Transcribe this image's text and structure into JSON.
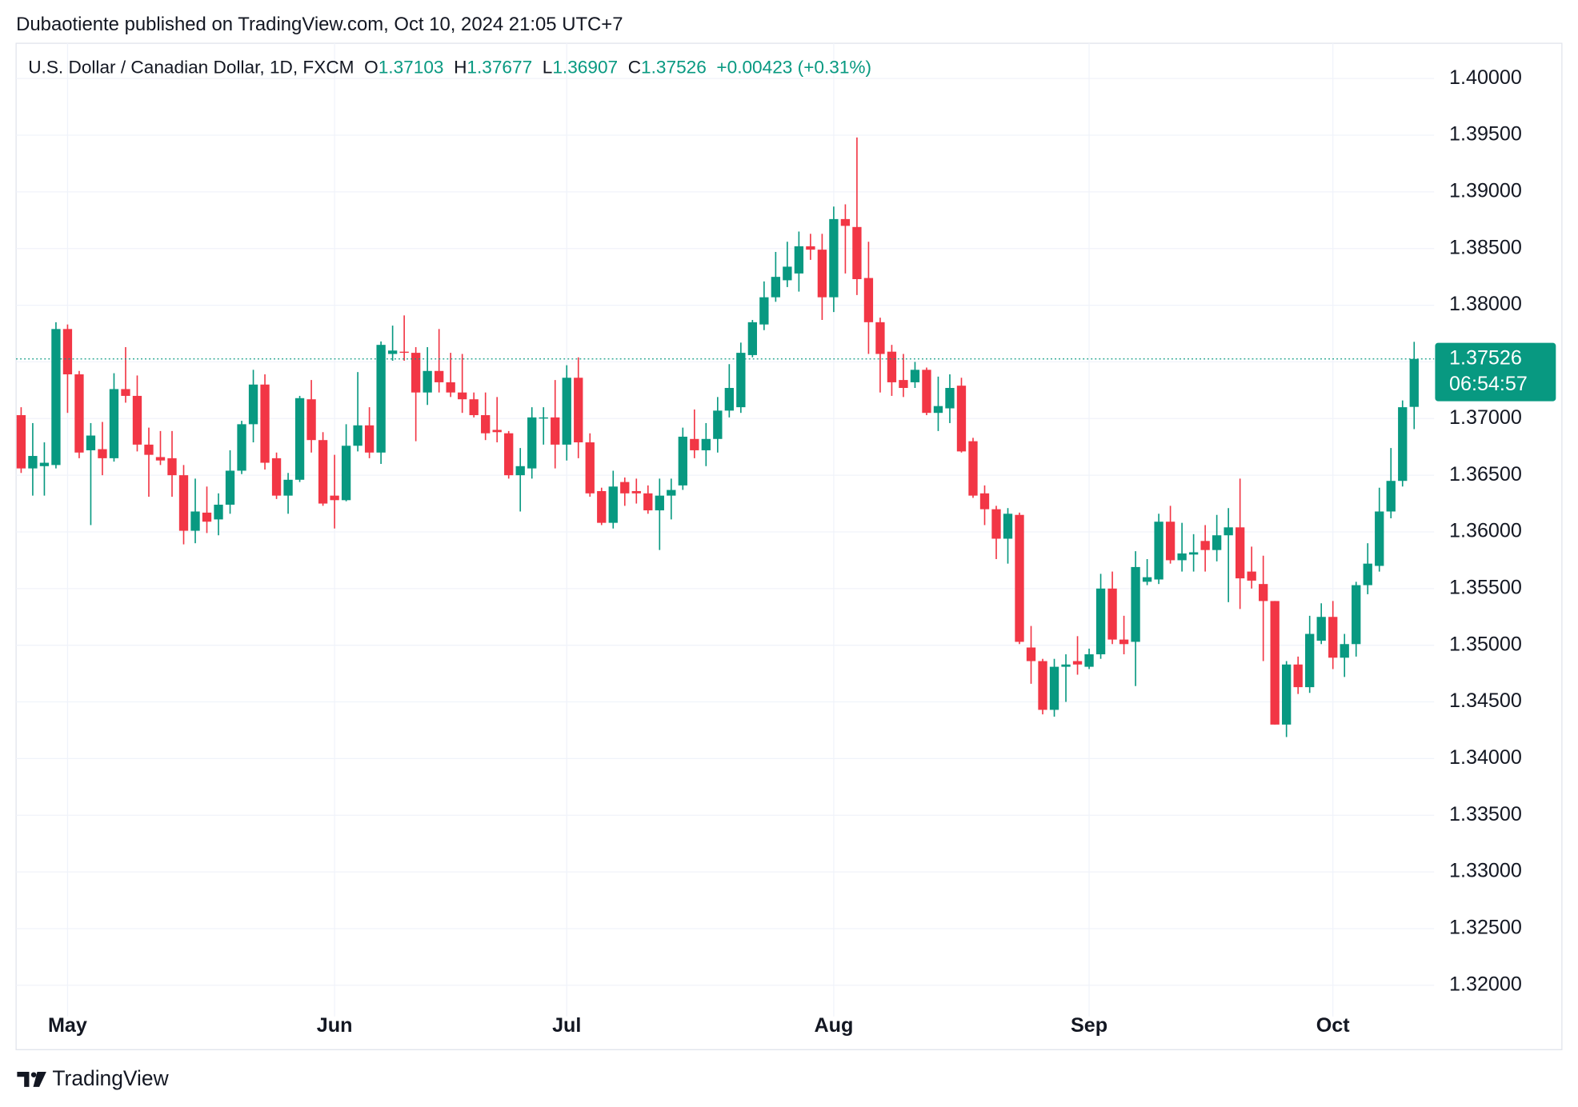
{
  "published": "Dubaotiente published on TradingView.com, Oct 10, 2024 21:05 UTC+7",
  "brand": "TradingView",
  "chart_data": {
    "type": "candlestick",
    "title": "U.S. Dollar / Canadian Dollar, 1D, FXCM",
    "ohlc_labels": [
      "O",
      "H",
      "L",
      "C"
    ],
    "change": "+0.00423 (+0.31%)",
    "countdown": "06:54:57",
    "up_color": "#089981",
    "down_color": "#f23645",
    "grid": true,
    "ylim": [
      1.31725,
      1.40311
    ],
    "yticks": [
      {
        "value": 1.32,
        "label": "1.32000"
      },
      {
        "value": 1.325,
        "label": "1.32500"
      },
      {
        "value": 1.33,
        "label": "1.33000"
      },
      {
        "value": 1.335,
        "label": "1.33500"
      },
      {
        "value": 1.34,
        "label": "1.34000"
      },
      {
        "value": 1.345,
        "label": "1.34500"
      },
      {
        "value": 1.35,
        "label": "1.35000"
      },
      {
        "value": 1.355,
        "label": "1.35500"
      },
      {
        "value": 1.36,
        "label": "1.36000"
      },
      {
        "value": 1.365,
        "label": "1.36500"
      },
      {
        "value": 1.37,
        "label": "1.37000"
      },
      {
        "value": 1.375,
        "label": "1.37500"
      },
      {
        "value": 1.38,
        "label": "1.38000"
      },
      {
        "value": 1.385,
        "label": "1.38500"
      },
      {
        "value": 1.39,
        "label": "1.39000"
      },
      {
        "value": 1.395,
        "label": "1.39500"
      },
      {
        "value": 1.4,
        "label": "1.40000"
      }
    ],
    "categories": [
      null,
      null,
      null,
      null,
      "May",
      null,
      null,
      null,
      null,
      null,
      null,
      null,
      null,
      null,
      null,
      null,
      null,
      null,
      null,
      null,
      null,
      null,
      null,
      null,
      null,
      null,
      null,
      "Jun",
      null,
      null,
      null,
      null,
      null,
      null,
      null,
      null,
      null,
      null,
      null,
      null,
      null,
      null,
      null,
      null,
      null,
      null,
      null,
      "Jul",
      null,
      null,
      null,
      null,
      null,
      null,
      null,
      null,
      null,
      null,
      null,
      null,
      null,
      null,
      null,
      null,
      null,
      null,
      null,
      null,
      null,
      null,
      "Aug",
      null,
      null,
      null,
      null,
      null,
      null,
      null,
      null,
      null,
      null,
      null,
      null,
      null,
      null,
      null,
      null,
      null,
      null,
      null,
      null,
      null,
      "Sep",
      null,
      null,
      null,
      null,
      null,
      null,
      null,
      null,
      null,
      null,
      null,
      null,
      null,
      null,
      null,
      null,
      null,
      null,
      null,
      null,
      "Oct",
      null,
      null,
      null,
      null,
      null,
      null,
      null
    ],
    "open": [
      1.3703,
      1.3656,
      1.3658,
      1.3659,
      1.3779,
      1.3739,
      1.3672,
      1.3673,
      1.3665,
      1.3726,
      1.372,
      1.3677,
      1.3666,
      1.3665,
      1.365,
      1.3601,
      1.3617,
      1.3611,
      1.3624,
      1.3654,
      1.3695,
      1.373,
      1.3665,
      1.3632,
      1.3646,
      1.3717,
      1.3681,
      1.3632,
      1.3628,
      1.3676,
      1.3694,
      1.367,
      1.3757,
      1.3759,
      1.3758,
      1.3723,
      1.3742,
      1.3732,
      1.3723,
      1.3717,
      1.3703,
      1.369,
      1.3687,
      1.365,
      1.3656,
      1.37,
      1.3701,
      1.3677,
      1.3736,
      1.3679,
      1.3636,
      1.3608,
      1.3644,
      1.3636,
      1.3634,
      1.3619,
      1.3632,
      1.3641,
      1.3682,
      1.3672,
      1.3682,
      1.3707,
      1.371,
      1.3756,
      1.3783,
      1.3807,
      1.3822,
      1.3828,
      1.3852,
      1.3849,
      1.3807,
      1.3876,
      1.3869,
      1.3824,
      1.3785,
      1.3759,
      1.3734,
      1.3732,
      1.3743,
      1.3705,
      1.3709,
      1.3729,
      1.368,
      1.3634,
      1.362,
      1.3594,
      1.3615,
      1.3498,
      1.3486,
      1.3443,
      1.3481,
      1.3486,
      1.3481,
      1.3492,
      1.355,
      1.3505,
      1.3503,
      1.3556,
      1.3558,
      1.3609,
      1.3575,
      1.358,
      1.3592,
      1.3584,
      1.3597,
      1.3604,
      1.3565,
      1.3554,
      1.3539,
      1.343,
      1.3483,
      1.3463,
      1.3504,
      1.3525,
      1.3489,
      1.3501,
      1.3553,
      1.357,
      1.3618,
      1.3645,
      1.37103
    ],
    "high": [
      1.371,
      1.3696,
      1.3679,
      1.3785,
      1.3783,
      1.3742,
      1.3696,
      1.3697,
      1.374,
      1.3763,
      1.3738,
      1.3692,
      1.3689,
      1.3689,
      1.3659,
      1.3647,
      1.364,
      1.3634,
      1.3672,
      1.3698,
      1.3743,
      1.3739,
      1.367,
      1.3652,
      1.372,
      1.3734,
      1.3688,
      1.3668,
      1.3695,
      1.3741,
      1.371,
      1.3768,
      1.3782,
      1.3791,
      1.3763,
      1.3763,
      1.3779,
      1.3758,
      1.3757,
      1.3723,
      1.3723,
      1.3719,
      1.3689,
      1.3674,
      1.371,
      1.371,
      1.3734,
      1.3747,
      1.3754,
      1.3687,
      1.3639,
      1.3654,
      1.3648,
      1.3647,
      1.3641,
      1.3647,
      1.3647,
      1.3692,
      1.3708,
      1.3696,
      1.3719,
      1.3748,
      1.3767,
      1.3787,
      1.3821,
      1.3847,
      1.3856,
      1.3865,
      1.3863,
      1.3863,
      1.3887,
      1.3889,
      1.3948,
      1.3856,
      1.3789,
      1.3765,
      1.3757,
      1.375,
      1.3745,
      1.3737,
      1.3739,
      1.3736,
      1.3683,
      1.3641,
      1.3623,
      1.3621,
      1.3617,
      1.3517,
      1.3488,
      1.3488,
      1.3492,
      1.3508,
      1.3497,
      1.3563,
      1.3565,
      1.3526,
      1.3583,
      1.3576,
      1.3616,
      1.3623,
      1.3608,
      1.3598,
      1.3606,
      1.3615,
      1.3621,
      1.3647,
      1.3587,
      1.3579,
      1.3539,
      1.3486,
      1.349,
      1.3526,
      1.3537,
      1.3539,
      1.351,
      1.3556,
      1.359,
      1.3639,
      1.3674,
      1.3716,
      1.37677
    ],
    "low": [
      1.3652,
      1.3632,
      1.3632,
      1.3656,
      1.3705,
      1.3665,
      1.3606,
      1.365,
      1.3662,
      1.3714,
      1.3671,
      1.3631,
      1.3659,
      1.3631,
      1.3589,
      1.359,
      1.3599,
      1.3597,
      1.3616,
      1.3651,
      1.3679,
      1.3655,
      1.3629,
      1.3616,
      1.3644,
      1.367,
      1.3623,
      1.3603,
      1.3627,
      1.3671,
      1.3665,
      1.366,
      1.3751,
      1.3751,
      1.368,
      1.3712,
      1.3723,
      1.3719,
      1.3705,
      1.3701,
      1.3681,
      1.3679,
      1.3647,
      1.3618,
      1.3647,
      1.3677,
      1.3656,
      1.3663,
      1.3665,
      1.3631,
      1.3606,
      1.3603,
      1.3623,
      1.3625,
      1.3616,
      1.3584,
      1.3611,
      1.3637,
      1.3665,
      1.3658,
      1.367,
      1.3701,
      1.3705,
      1.3754,
      1.3778,
      1.3803,
      1.3816,
      1.3812,
      1.384,
      1.3787,
      1.3794,
      1.3828,
      1.3809,
      1.3757,
      1.3723,
      1.372,
      1.3719,
      1.3727,
      1.3703,
      1.3689,
      1.3696,
      1.367,
      1.363,
      1.3606,
      1.3576,
      1.3572,
      1.3501,
      1.3466,
      1.3439,
      1.3437,
      1.345,
      1.3474,
      1.3479,
      1.3488,
      1.3501,
      1.3492,
      1.3464,
      1.3553,
      1.3554,
      1.3572,
      1.3565,
      1.3565,
      1.3565,
      1.3574,
      1.3538,
      1.3532,
      1.355,
      1.3486,
      1.343,
      1.3419,
      1.3457,
      1.3458,
      1.3501,
      1.3479,
      1.3472,
      1.349,
      1.3545,
      1.3565,
      1.3612,
      1.364,
      1.36907
    ],
    "close": [
      1.3656,
      1.3667,
      1.3661,
      1.3779,
      1.3739,
      1.367,
      1.3685,
      1.3665,
      1.3726,
      1.372,
      1.3677,
      1.3668,
      1.3663,
      1.365,
      1.3601,
      1.3618,
      1.3609,
      1.3624,
      1.3654,
      1.3695,
      1.373,
      1.3661,
      1.3632,
      1.3646,
      1.3718,
      1.3681,
      1.3625,
      1.3628,
      1.3676,
      1.3694,
      1.367,
      1.3765,
      1.376,
      1.3758,
      1.3723,
      1.3742,
      1.3732,
      1.3723,
      1.3717,
      1.3703,
      1.3687,
      1.3688,
      1.365,
      1.3658,
      1.3701,
      1.3701,
      1.3677,
      1.3736,
      1.3679,
      1.3634,
      1.3608,
      1.364,
      1.3634,
      1.3634,
      1.3619,
      1.3632,
      1.3637,
      1.3684,
      1.3672,
      1.3682,
      1.3707,
      1.3727,
      1.3758,
      1.3785,
      1.3807,
      1.3825,
      1.3834,
      1.3852,
      1.3849,
      1.3807,
      1.3876,
      1.387,
      1.3823,
      1.3785,
      1.3757,
      1.3732,
      1.3727,
      1.3743,
      1.3705,
      1.3711,
      1.3727,
      1.3671,
      1.3632,
      1.362,
      1.3594,
      1.3616,
      1.3503,
      1.3486,
      1.3443,
      1.3481,
      1.3483,
      1.3483,
      1.3492,
      1.355,
      1.3505,
      1.3501,
      1.3569,
      1.356,
      1.3609,
      1.3575,
      1.3581,
      1.3582,
      1.3584,
      1.3597,
      1.3604,
      1.3559,
      1.3557,
      1.3539,
      1.343,
      1.3483,
      1.3463,
      1.351,
      1.3525,
      1.3489,
      1.3501,
      1.3553,
      1.3572,
      1.3618,
      1.3645,
      1.371,
      1.37526
    ]
  }
}
